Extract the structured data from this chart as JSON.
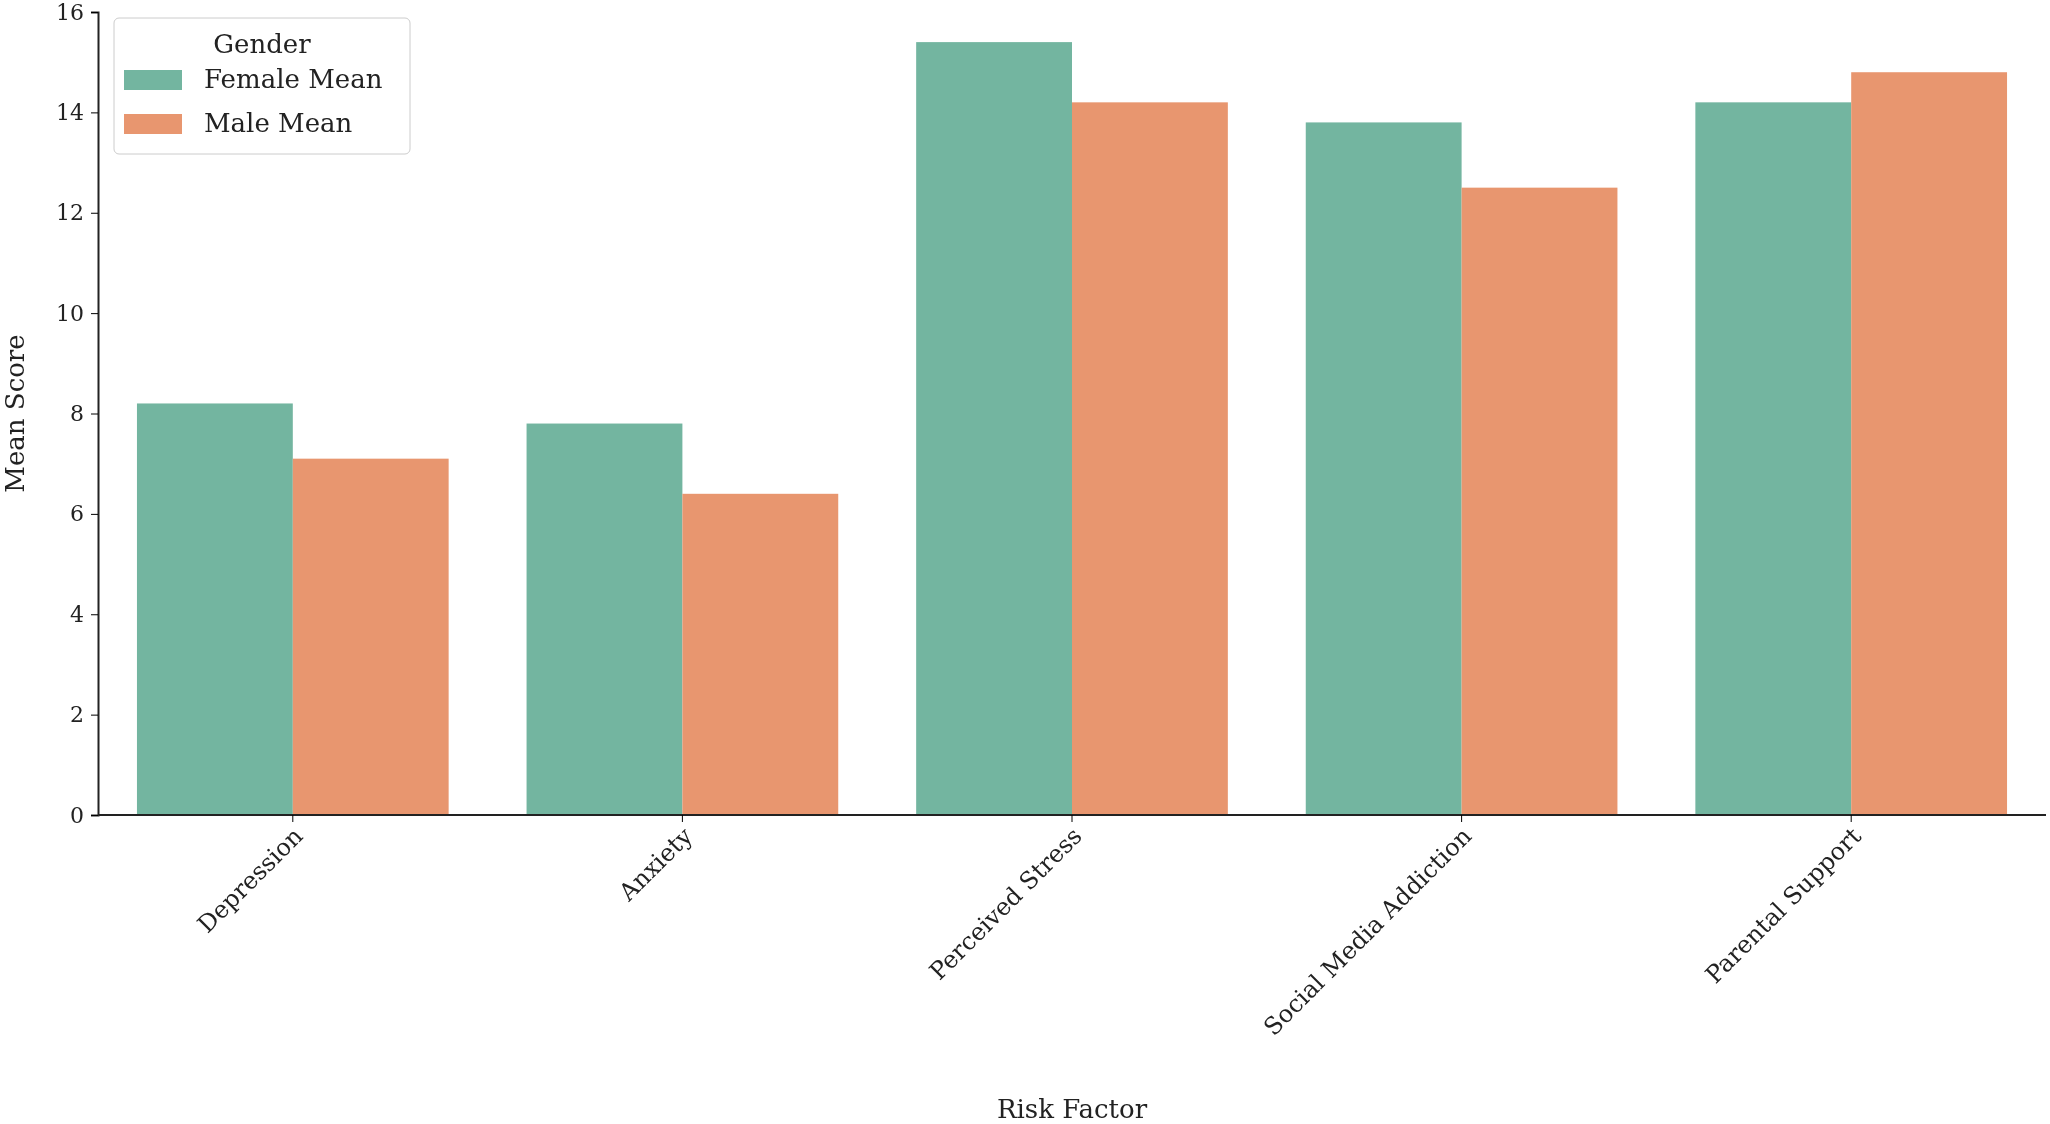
{
  "chart_data": {
    "type": "bar",
    "xlabel": "Risk Factor",
    "ylabel": "Mean Score",
    "legend_title": "Gender",
    "legend": "top left",
    "categories": [
      "Depression",
      "Anxiety",
      "Perceived Stress",
      "Social Media Addiction",
      "Parental Support"
    ],
    "series": [
      {
        "name": "Female Mean",
        "color": "#73b5a0",
        "values": [
          8.2,
          7.8,
          15.4,
          13.8,
          14.2
        ]
      },
      {
        "name": "Male Mean",
        "color": "#e8966f",
        "values": [
          7.1,
          6.4,
          14.2,
          12.5,
          14.8
        ]
      }
    ],
    "ylim": [
      0,
      16
    ],
    "yticks": [
      0,
      2,
      4,
      6,
      8,
      10,
      12,
      14,
      16
    ]
  }
}
